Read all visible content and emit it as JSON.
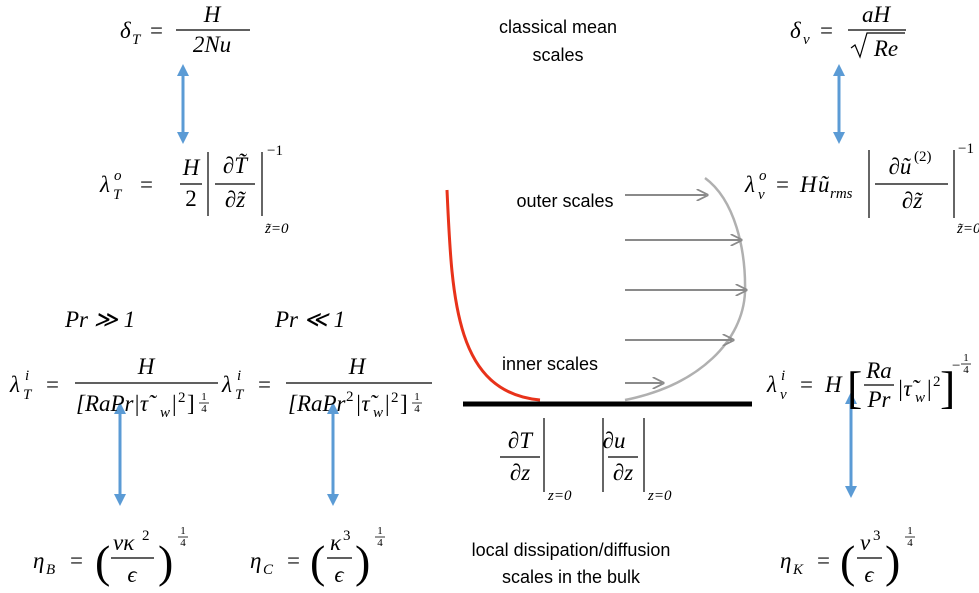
{
  "labels": {
    "classical": [
      "classical mean",
      "scales"
    ],
    "outer": "outer scales",
    "inner": "inner scales",
    "local": [
      "local dissipation/diffusion",
      "scales in the bulk"
    ]
  },
  "formulas": {
    "delta_T": [
      "δ",
      "T",
      "=",
      "H",
      "2Nu"
    ],
    "lambda_T_o": [
      "λ",
      "o",
      "T",
      "=",
      "H",
      "2",
      "∂T̃",
      "∂z̃",
      "−1",
      "z̃=0"
    ],
    "delta_v": [
      "δ",
      "v",
      "=",
      "aH",
      "Re"
    ],
    "lambda_v_o": [
      "λ",
      "o",
      "v",
      "=",
      "H",
      "ũ",
      "rms",
      "∂ũ",
      "(2)",
      "∂z̃",
      "−1",
      "z̃=0"
    ],
    "pr_large": "Pr ≫ 1",
    "pr_small": "Pr ≪ 1",
    "lambda_T_i_large": [
      "λ",
      "i",
      "T",
      "=",
      "H",
      "[RaPr|τ̃",
      "w",
      "|",
      "2",
      "]",
      "1",
      "4"
    ],
    "lambda_T_i_small": [
      "λ",
      "i",
      "T",
      "=",
      "H",
      "[RaPr",
      "2",
      "|τ̃",
      "w",
      "|",
      "2",
      "]",
      "1",
      "4"
    ],
    "lambda_v_i": [
      "λ",
      "i",
      "v",
      "=",
      "H",
      "[",
      "Ra",
      "Pr",
      "|τ̃",
      "w",
      "|",
      "2",
      "]",
      "−",
      "1",
      "4"
    ],
    "dT_dz": [
      "∂T",
      "∂z",
      "z=0"
    ],
    "du_dz": [
      "∂u⃗",
      "∂z",
      "z=0"
    ],
    "eta_B": [
      "η",
      "B",
      "=",
      "(",
      "νκ",
      "2",
      "ϵ",
      ")",
      "1",
      "4"
    ],
    "eta_C": [
      "η",
      "C",
      "=",
      "(",
      "κ",
      "3",
      "ϵ",
      ")",
      "1",
      "4"
    ],
    "eta_K": [
      "η",
      "K",
      "=",
      "(",
      "ν",
      "3",
      "ϵ",
      ")",
      "1",
      "4"
    ]
  }
}
